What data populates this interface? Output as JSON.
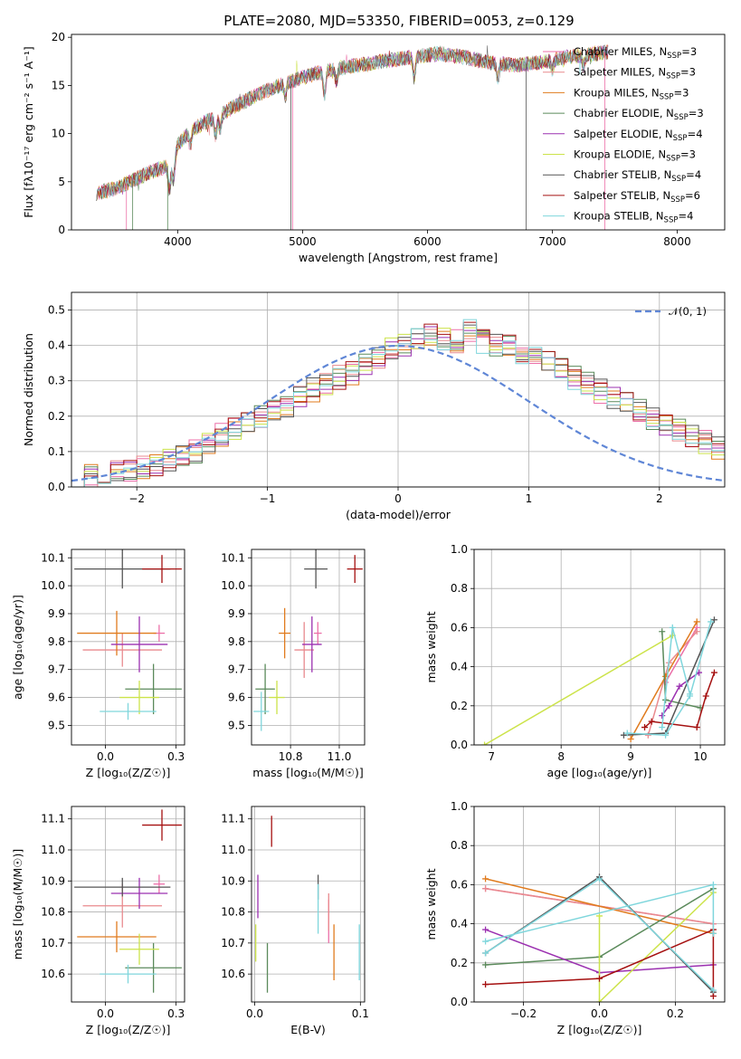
{
  "figure": {
    "title": "PLATE=2080, MJD=53350, FIBERID=0053, z=0.129"
  },
  "models": [
    {
      "name": "Chabrier MILES",
      "nssp": "3",
      "color": "#ec6fa8"
    },
    {
      "name": "Salpeter MILES",
      "nssp": "3",
      "color": "#e98a8e"
    },
    {
      "name": "Kroupa MILES",
      "nssp": "3",
      "color": "#e07b1e"
    },
    {
      "name": "Chabrier ELODIE",
      "nssp": "3",
      "color": "#5b8a5b"
    },
    {
      "name": "Salpeter ELODIE",
      "nssp": "4",
      "color": "#9b30b0"
    },
    {
      "name": "Kroupa ELODIE",
      "nssp": "3",
      "color": "#cce34a"
    },
    {
      "name": "Chabrier STELIB",
      "nssp": "4",
      "color": "#555555"
    },
    {
      "name": "Salpeter STELIB",
      "nssp": "6",
      "color": "#a51010"
    },
    {
      "name": "Kroupa STELIB",
      "nssp": "4",
      "color": "#7fd6dc"
    }
  ],
  "chart_data": [
    {
      "id": "spectrum",
      "type": "line",
      "xlabel": "wavelength [Angstrom, rest frame]",
      "ylabel": "Flux [fλ10⁻¹⁷ erg cm⁻² s⁻¹ A⁻¹]",
      "xlim": [
        3150,
        8380
      ],
      "ylim": [
        0,
        20.3
      ],
      "xticks": [
        4000,
        5000,
        6000,
        7000,
        8000
      ],
      "yticks": [
        0,
        5,
        10,
        15,
        20
      ],
      "grid": false,
      "legend": "upper-right",
      "continuum": {
        "x": [
          3350,
          3500,
          3700,
          3850,
          3950,
          4000,
          4100,
          4300,
          4500,
          4700,
          4900,
          5100,
          5300,
          5500,
          5700,
          5900,
          6100,
          6300,
          6500,
          6700,
          6900,
          7100,
          7300,
          7450
        ],
        "y": [
          3.8,
          4.3,
          5.5,
          6.3,
          6.8,
          8.8,
          10.3,
          11.7,
          13.1,
          14.4,
          15.4,
          16.2,
          16.8,
          17.2,
          17.6,
          18.0,
          18.3,
          17.9,
          17.4,
          17.1,
          17.4,
          17.9,
          18.2,
          18.5
        ]
      },
      "absorption": [
        {
          "x": 3934,
          "depth": 2.6
        },
        {
          "x": 3968,
          "depth": 2.2
        },
        {
          "x": 4101,
          "depth": 1.6
        },
        {
          "x": 4304,
          "depth": 2.0
        },
        {
          "x": 4340,
          "depth": 1.5
        },
        {
          "x": 4861,
          "depth": 1.4
        },
        {
          "x": 5175,
          "depth": 2.4
        },
        {
          "x": 5270,
          "depth": 1.2
        },
        {
          "x": 5893,
          "depth": 2.2
        },
        {
          "x": 6563,
          "depth": 1.5
        },
        {
          "x": 7000,
          "depth": 1.0
        },
        {
          "x": 7250,
          "depth": 1.1
        }
      ],
      "spikes": [
        {
          "x": 3590,
          "y": 0
        },
        {
          "x": 3640,
          "y": 0
        },
        {
          "x": 4906,
          "y": 0
        },
        {
          "x": 4920,
          "y": 0
        },
        {
          "x": 3920,
          "y": 0
        },
        {
          "x": 6790,
          "y": 0
        },
        {
          "x": 7420,
          "y": 0
        }
      ]
    },
    {
      "id": "residuals",
      "type": "histogram",
      "xlabel": "(data-model)/error",
      "ylabel": "Normed distribution",
      "xlim": [
        -2.5,
        2.5
      ],
      "ylim": [
        0,
        0.55
      ],
      "xticks": [
        -2,
        -1,
        0,
        1,
        2
      ],
      "yticks": [
        0,
        0.1,
        0.2,
        0.3,
        0.4,
        0.5
      ],
      "grid": true,
      "legend": "upper-right",
      "reference": {
        "name": "𝒩(0, 1)",
        "mean": 0,
        "sigma": 1,
        "color": "#5f86d6"
      },
      "bin_width": 0.1,
      "bin_start": -2.5,
      "base_values": [
        0.028,
        0.032,
        0.036,
        0.042,
        0.05,
        0.055,
        0.064,
        0.078,
        0.09,
        0.1,
        0.125,
        0.145,
        0.16,
        0.18,
        0.195,
        0.21,
        0.23,
        0.25,
        0.275,
        0.29,
        0.31,
        0.32,
        0.35,
        0.37,
        0.39,
        0.4,
        0.42,
        0.43,
        0.42,
        0.41,
        0.44,
        0.41,
        0.4,
        0.395,
        0.38,
        0.365,
        0.35,
        0.33,
        0.31,
        0.29,
        0.27,
        0.25,
        0.24,
        0.22,
        0.195,
        0.18,
        0.16,
        0.14,
        0.125,
        0.11,
        0.095
      ]
    },
    {
      "id": "age-vs-Z",
      "type": "errorbar",
      "xlabel": "Z [log₁₀(Z/Z☉)]",
      "ylabel": "age  [log₁₀(age/yr)]",
      "xlim": [
        -0.12,
        0.28
      ],
      "ylim": [
        9.43,
        10.13
      ],
      "xticks": [
        0.0,
        0.25
      ],
      "yticks": [
        9.5,
        9.6,
        9.7,
        9.8,
        9.9,
        10.0,
        10.1
      ],
      "grid": true,
      "points": [
        {
          "series": "Chabrier MILES",
          "x": 0.19,
          "y": 9.83,
          "xerr": 0.02,
          "yerr": 0.03
        },
        {
          "series": "Salpeter MILES",
          "x": 0.06,
          "y": 9.77,
          "xerr": 0.14,
          "yerr": 0.06
        },
        {
          "series": "Kroupa MILES",
          "x": 0.04,
          "y": 9.83,
          "xerr": 0.14,
          "yerr": 0.08
        },
        {
          "series": "Chabrier ELODIE",
          "x": 0.17,
          "y": 9.63,
          "xerr": 0.1,
          "yerr": 0.09
        },
        {
          "series": "Salpeter ELODIE",
          "x": 0.12,
          "y": 9.79,
          "xerr": 0.1,
          "yerr": 0.1
        },
        {
          "series": "Kroupa ELODIE",
          "x": 0.12,
          "y": 9.6,
          "xerr": 0.07,
          "yerr": 0.06
        },
        {
          "series": "Chabrier STELIB",
          "x": 0.06,
          "y": 10.06,
          "xerr": 0.17,
          "yerr": 0.07
        },
        {
          "series": "Salpeter STELIB",
          "x": 0.2,
          "y": 10.06,
          "xerr": 0.07,
          "yerr": 0.05
        },
        {
          "series": "Kroupa STELIB",
          "x": 0.08,
          "y": 9.55,
          "xerr": 0.1,
          "yerr": 0.03
        }
      ]
    },
    {
      "id": "age-vs-mass",
      "type": "errorbar",
      "xlabel": "mass [log₁₀(M/M☉)]",
      "ylabel": "",
      "xlim": [
        10.55,
        11.13
      ],
      "ylim": [
        9.43,
        10.13
      ],
      "xticks": [
        10.75,
        11.0
      ],
      "yticks": [
        9.5,
        9.6,
        9.7,
        9.8,
        9.9,
        10.0,
        10.1
      ],
      "grid": true,
      "points": [
        {
          "series": "Chabrier MILES",
          "x": 10.89,
          "y": 9.83,
          "xerr": 0.02,
          "yerr": 0.04
        },
        {
          "series": "Salpeter MILES",
          "x": 10.82,
          "y": 9.77,
          "xerr": 0.05,
          "yerr": 0.1
        },
        {
          "series": "Kroupa MILES",
          "x": 10.72,
          "y": 9.83,
          "xerr": 0.03,
          "yerr": 0.09
        },
        {
          "series": "Chabrier ELODIE",
          "x": 10.62,
          "y": 9.63,
          "xerr": 0.05,
          "yerr": 0.09
        },
        {
          "series": "Salpeter ELODIE",
          "x": 10.86,
          "y": 9.79,
          "xerr": 0.05,
          "yerr": 0.1
        },
        {
          "series": "Kroupa ELODIE",
          "x": 10.68,
          "y": 9.6,
          "xerr": 0.04,
          "yerr": 0.06
        },
        {
          "series": "Chabrier STELIB",
          "x": 10.88,
          "y": 10.06,
          "xerr": 0.06,
          "yerr": 0.07
        },
        {
          "series": "Salpeter STELIB",
          "x": 11.08,
          "y": 10.06,
          "xerr": 0.04,
          "yerr": 0.05
        },
        {
          "series": "Kroupa STELIB",
          "x": 10.6,
          "y": 9.55,
          "xerr": 0.04,
          "yerr": 0.07
        }
      ]
    },
    {
      "id": "weight-vs-age",
      "type": "line",
      "xlabel": "age  [log₁₀(age/yr)]",
      "ylabel": "mass weight",
      "xlim": [
        6.75,
        10.35
      ],
      "ylim": [
        0,
        1.0
      ],
      "xticks": [
        7,
        8,
        9,
        10
      ],
      "yticks": [
        0.0,
        0.2,
        0.4,
        0.6,
        0.8,
        1.0
      ],
      "grid": true,
      "series": [
        {
          "name": "Chabrier MILES",
          "x": [
            9.5,
            9.95
          ],
          "y": [
            0.32,
            0.6
          ]
        },
        {
          "name": "Salpeter MILES",
          "x": [
            9.25,
            9.55,
            9.95
          ],
          "y": [
            0.05,
            0.42,
            0.58
          ]
        },
        {
          "name": "Kroupa MILES",
          "x": [
            9.0,
            9.5,
            9.95
          ],
          "y": [
            0.03,
            0.35,
            0.63
          ]
        },
        {
          "name": "Chabrier ELODIE",
          "x": [
            9.45,
            9.5,
            10.0
          ],
          "y": [
            0.58,
            0.23,
            0.19
          ]
        },
        {
          "name": "Salpeter ELODIE",
          "x": [
            9.45,
            9.55,
            9.7,
            9.98
          ],
          "y": [
            0.15,
            0.2,
            0.3,
            0.37
          ]
        },
        {
          "name": "Kroupa ELODIE",
          "x": [
            6.9,
            9.6
          ],
          "y": [
            0.0,
            0.56
          ]
        },
        {
          "name": "Chabrier STELIB",
          "x": [
            8.9,
            9.5,
            10.2
          ],
          "y": [
            0.05,
            0.06,
            0.64
          ]
        },
        {
          "name": "Salpeter STELIB",
          "x": [
            9.2,
            9.3,
            9.95,
            10.08,
            10.2
          ],
          "y": [
            0.09,
            0.12,
            0.09,
            0.25,
            0.37
          ]
        },
        {
          "name": "Kroupa STELIB",
          "x": [
            8.95,
            9.5,
            9.85,
            10.15
          ],
          "y": [
            0.06,
            0.05,
            0.25,
            0.63
          ]
        },
        {
          "name": "Kroupa STELIB",
          "x": [
            9.45,
            9.6,
            9.85
          ],
          "y": [
            0.09,
            0.6,
            0.26
          ]
        }
      ]
    },
    {
      "id": "mass-vs-Z",
      "type": "errorbar",
      "xlabel": "Z [log₁₀(Z/Z☉)]",
      "ylabel": "mass [log₁₀(M/M☉)]",
      "xlim": [
        -0.12,
        0.28
      ],
      "ylim": [
        10.51,
        11.14
      ],
      "xticks": [
        0.0,
        0.25
      ],
      "yticks": [
        10.6,
        10.7,
        10.8,
        10.9,
        11.0,
        11.1
      ],
      "grid": true,
      "points": [
        {
          "series": "Chabrier MILES",
          "x": 0.19,
          "y": 10.89,
          "xerr": 0.02,
          "yerr": 0.03
        },
        {
          "series": "Salpeter MILES",
          "x": 0.06,
          "y": 10.82,
          "xerr": 0.14,
          "yerr": 0.07
        },
        {
          "series": "Kroupa MILES",
          "x": 0.04,
          "y": 10.72,
          "xerr": 0.14,
          "yerr": 0.05
        },
        {
          "series": "Chabrier ELODIE",
          "x": 0.17,
          "y": 10.62,
          "xerr": 0.1,
          "yerr": 0.08
        },
        {
          "series": "Salpeter ELODIE",
          "x": 0.12,
          "y": 10.86,
          "xerr": 0.1,
          "yerr": 0.05
        },
        {
          "series": "Kroupa ELODIE",
          "x": 0.12,
          "y": 10.68,
          "xerr": 0.07,
          "yerr": 0.05
        },
        {
          "series": "Chabrier STELIB",
          "x": 0.06,
          "y": 10.88,
          "xerr": 0.17,
          "yerr": 0.03
        },
        {
          "series": "Salpeter STELIB",
          "x": 0.2,
          "y": 11.08,
          "xerr": 0.07,
          "yerr": 0.05
        },
        {
          "series": "Kroupa STELIB",
          "x": 0.08,
          "y": 10.6,
          "xerr": 0.1,
          "yerr": 0.03
        }
      ]
    },
    {
      "id": "mass-vs-ebv",
      "type": "errorbar",
      "xlabel": "E(B-V)",
      "ylabel": "",
      "xlim": [
        -0.003,
        0.104
      ],
      "ylim": [
        10.51,
        11.14
      ],
      "xticks": [
        0.0,
        0.1
      ],
      "yticks": [
        10.6,
        10.7,
        10.8,
        10.9,
        11.0,
        11.1
      ],
      "grid": true,
      "points": [
        {
          "series": "Chabrier MILES",
          "x": 0.07,
          "y": 10.77,
          "xerr": 0.0,
          "yerr": 0.07
        },
        {
          "series": "Salpeter MILES",
          "x": 0.07,
          "y": 10.8,
          "xerr": 0.0,
          "yerr": 0.06
        },
        {
          "series": "Kroupa MILES",
          "x": 0.075,
          "y": 10.67,
          "xerr": 0.0,
          "yerr": 0.09
        },
        {
          "series": "Chabrier ELODIE",
          "x": 0.012,
          "y": 10.62,
          "xerr": 0.0,
          "yerr": 0.08
        },
        {
          "series": "Salpeter ELODIE",
          "x": 0.003,
          "y": 10.85,
          "xerr": 0.0,
          "yerr": 0.07
        },
        {
          "series": "Kroupa ELODIE",
          "x": 0.001,
          "y": 10.7,
          "xerr": 0.0,
          "yerr": 0.06
        },
        {
          "series": "Chabrier STELIB",
          "x": 0.06,
          "y": 10.88,
          "xerr": 0.0,
          "yerr": 0.04
        },
        {
          "series": "Salpeter STELIB",
          "x": 0.016,
          "y": 11.06,
          "xerr": 0.0,
          "yerr": 0.05
        },
        {
          "series": "Kroupa STELIB",
          "x": 0.06,
          "y": 10.81,
          "xerr": 0.0,
          "yerr": 0.08
        },
        {
          "series": "Kroupa STELIB",
          "x": 0.099,
          "y": 10.67,
          "xerr": 0.0,
          "yerr": 0.09
        }
      ]
    },
    {
      "id": "weight-vs-Z",
      "type": "line",
      "xlabel": "Z [log₁₀(Z/Z☉)]",
      "ylabel": "mass weight",
      "xlim": [
        -0.33,
        0.33
      ],
      "ylim": [
        0,
        1.0
      ],
      "xticks": [
        -0.2,
        0.0,
        0.2
      ],
      "yticks": [
        0.0,
        0.2,
        0.4,
        0.6,
        0.8,
        1.0
      ],
      "grid": true,
      "series": [
        {
          "name": "Chabrier MILES",
          "x": [
            -0.3,
            0.3
          ],
          "y": [
            0.58,
            0.4
          ]
        },
        {
          "name": "Salpeter MILES",
          "x": [
            -0.3,
            0.3
          ],
          "y": [
            0.58,
            0.4
          ]
        },
        {
          "name": "Kroupa MILES",
          "x": [
            -0.3,
            0.3
          ],
          "y": [
            0.63,
            0.35
          ]
        },
        {
          "name": "Chabrier ELODIE",
          "x": [
            -0.3,
            0.0,
            0.3
          ],
          "y": [
            0.19,
            0.23,
            0.58
          ]
        },
        {
          "name": "Salpeter ELODIE",
          "x": [
            -0.3,
            0.0,
            0.3
          ],
          "y": [
            0.37,
            0.15,
            0.19
          ]
        },
        {
          "name": "Kroupa ELODIE",
          "x": [
            0.0,
            0.0,
            0.3
          ],
          "y": [
            0.44,
            0.0,
            0.56
          ]
        },
        {
          "name": "Chabrier STELIB",
          "x": [
            -0.3,
            0.0,
            0.3
          ],
          "y": [
            0.25,
            0.64,
            0.05
          ]
        },
        {
          "name": "Salpeter STELIB",
          "x": [
            -0.3,
            0.0,
            0.3,
            0.3
          ],
          "y": [
            0.09,
            0.12,
            0.37,
            0.03
          ]
        },
        {
          "name": "Kroupa STELIB",
          "x": [
            -0.3,
            0.0,
            0.3
          ],
          "y": [
            0.25,
            0.63,
            0.06
          ]
        },
        {
          "name": "Kroupa STELIB",
          "x": [
            -0.3,
            0.3,
            0.3
          ],
          "y": [
            0.31,
            0.6,
            0.35
          ]
        }
      ]
    }
  ]
}
